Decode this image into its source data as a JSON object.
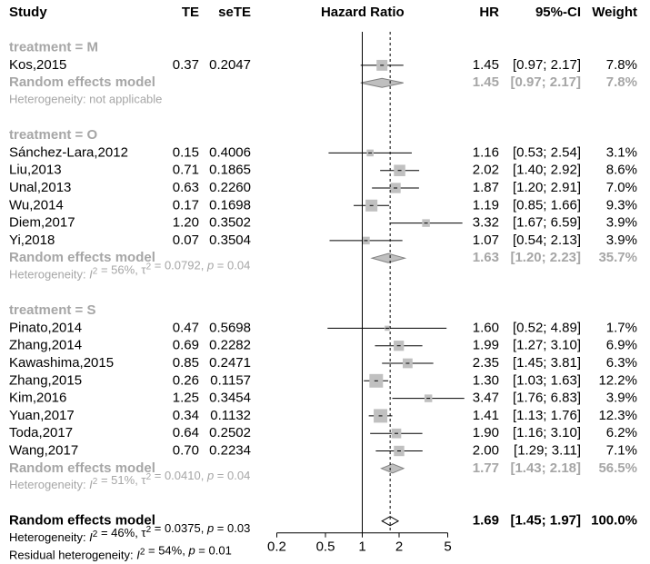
{
  "chart_data": {
    "type": "forest",
    "headers": {
      "study": "Study",
      "te": "TE",
      "sete": "seTE",
      "plot": "Hazard Ratio",
      "hr": "HR",
      "ci": "95%-CI",
      "weight": "Weight"
    },
    "x_axis": {
      "scale": "log",
      "ticks": [
        {
          "value": 0.2,
          "label": "0.2"
        },
        {
          "value": 0.5,
          "label": "0.5"
        },
        {
          "value": 1,
          "label": "1"
        },
        {
          "value": 2,
          "label": "2"
        },
        {
          "value": 5,
          "label": "5"
        }
      ],
      "reference_line": 1,
      "pooled_dashed_line": 1.69
    },
    "groups": [
      {
        "label": "treatment = M",
        "studies": [
          {
            "study": "Kos,2015",
            "te": "0.37",
            "sete": "0.2047",
            "hr": 1.45,
            "lo": 0.97,
            "hi": 2.17,
            "hr_text": "1.45",
            "ci_text": "[0.97; 2.17]",
            "weight_text": "7.8%",
            "weight": 7.8
          }
        ],
        "re": {
          "label": "Random effects model",
          "hr": 1.45,
          "lo": 0.97,
          "hi": 2.17,
          "hr_text": "1.45",
          "ci_text": "[0.97; 2.17]",
          "weight_text": "7.8%"
        },
        "heterogeneity": "Heterogeneity: not applicable"
      },
      {
        "label": "treatment = O",
        "studies": [
          {
            "study": "Sánchez-Lara,2012",
            "te": "0.15",
            "sete": "0.4006",
            "hr": 1.16,
            "lo": 0.53,
            "hi": 2.54,
            "hr_text": "1.16",
            "ci_text": "[0.53; 2.54]",
            "weight_text": "3.1%",
            "weight": 3.1
          },
          {
            "study": "Liu,2013",
            "te": "0.71",
            "sete": "0.1865",
            "hr": 2.02,
            "lo": 1.4,
            "hi": 2.92,
            "hr_text": "2.02",
            "ci_text": "[1.40; 2.92]",
            "weight_text": "8.6%",
            "weight": 8.6
          },
          {
            "study": "Unal,2013",
            "te": "0.63",
            "sete": "0.2260",
            "hr": 1.87,
            "lo": 1.2,
            "hi": 2.91,
            "hr_text": "1.87",
            "ci_text": "[1.20; 2.91]",
            "weight_text": "7.0%",
            "weight": 7.0
          },
          {
            "study": "Wu,2014",
            "te": "0.17",
            "sete": "0.1698",
            "hr": 1.19,
            "lo": 0.85,
            "hi": 1.66,
            "hr_text": "1.19",
            "ci_text": "[0.85; 1.66]",
            "weight_text": "9.3%",
            "weight": 9.3
          },
          {
            "study": "Diem,2017",
            "te": "1.20",
            "sete": "0.3502",
            "hr": 3.32,
            "lo": 1.67,
            "hi": 6.59,
            "hr_text": "3.32",
            "ci_text": "[1.67; 6.59]",
            "weight_text": "3.9%",
            "weight": 3.9
          },
          {
            "study": "Yi,2018",
            "te": "0.07",
            "sete": "0.3504",
            "hr": 1.07,
            "lo": 0.54,
            "hi": 2.13,
            "hr_text": "1.07",
            "ci_text": "[0.54; 2.13]",
            "weight_text": "3.9%",
            "weight": 3.9
          }
        ],
        "re": {
          "label": "Random effects model",
          "hr": 1.63,
          "lo": 1.2,
          "hi": 2.23,
          "hr_text": "1.63",
          "ci_text": "[1.20; 2.23]",
          "weight_text": "35.7%"
        },
        "heterogeneity": "Heterogeneity: I² = 56%, τ² = 0.0792, p = 0.04"
      },
      {
        "label": "treatment = S",
        "studies": [
          {
            "study": "Pinato,2014",
            "te": "0.47",
            "sete": "0.5698",
            "hr": 1.6,
            "lo": 0.52,
            "hi": 4.89,
            "hr_text": "1.60",
            "ci_text": "[0.52; 4.89]",
            "weight_text": "1.7%",
            "weight": 1.7
          },
          {
            "study": "Zhang,2014",
            "te": "0.69",
            "sete": "0.2282",
            "hr": 1.99,
            "lo": 1.27,
            "hi": 3.1,
            "hr_text": "1.99",
            "ci_text": "[1.27; 3.10]",
            "weight_text": "6.9%",
            "weight": 6.9
          },
          {
            "study": "Kawashima,2015",
            "te": "0.85",
            "sete": "0.2471",
            "hr": 2.35,
            "lo": 1.45,
            "hi": 3.81,
            "hr_text": "2.35",
            "ci_text": "[1.45; 3.81]",
            "weight_text": "6.3%",
            "weight": 6.3
          },
          {
            "study": "Zhang,2015",
            "te": "0.26",
            "sete": "0.1157",
            "hr": 1.3,
            "lo": 1.03,
            "hi": 1.63,
            "hr_text": "1.30",
            "ci_text": "[1.03; 1.63]",
            "weight_text": "12.2%",
            "weight": 12.2
          },
          {
            "study": "Kim,2016",
            "te": "1.25",
            "sete": "0.3454",
            "hr": 3.47,
            "lo": 1.76,
            "hi": 6.83,
            "hr_text": "3.47",
            "ci_text": "[1.76; 6.83]",
            "weight_text": "3.9%",
            "weight": 3.9
          },
          {
            "study": "Yuan,2017",
            "te": "0.34",
            "sete": "0.1132",
            "hr": 1.41,
            "lo": 1.13,
            "hi": 1.76,
            "hr_text": "1.41",
            "ci_text": "[1.13; 1.76]",
            "weight_text": "12.3%",
            "weight": 12.3
          },
          {
            "study": "Toda,2017",
            "te": "0.64",
            "sete": "0.2502",
            "hr": 1.9,
            "lo": 1.16,
            "hi": 3.1,
            "hr_text": "1.90",
            "ci_text": "[1.16; 3.10]",
            "weight_text": "6.2%",
            "weight": 6.2
          },
          {
            "study": "Wang,2017",
            "te": "0.70",
            "sete": "0.2234",
            "hr": 2.0,
            "lo": 1.29,
            "hi": 3.11,
            "hr_text": "2.00",
            "ci_text": "[1.29; 3.11]",
            "weight_text": "7.1%",
            "weight": 7.1
          }
        ],
        "re": {
          "label": "Random effects model",
          "hr": 1.77,
          "lo": 1.43,
          "hi": 2.18,
          "hr_text": "1.77",
          "ci_text": "[1.43; 2.18]",
          "weight_text": "56.5%"
        },
        "heterogeneity": "Heterogeneity: I² = 51%, τ² = 0.0410, p = 0.04"
      }
    ],
    "overall": {
      "label": "Random effects model",
      "hr": 1.69,
      "lo": 1.45,
      "hi": 1.97,
      "hr_text": "1.69",
      "ci_text": "[1.45; 1.97]",
      "weight_text": "100.0%",
      "heterogeneity": "Heterogeneity: I² = 46%, τ² = 0.0375, p = 0.03",
      "residual_heterogeneity": "Residual heterogeneity: I² = 54%, p = 0.01"
    },
    "colors": {
      "text": "#000000",
      "subgroup": "#a6a6a6",
      "box": "#c0c0c0",
      "diamond_fill": "#bfbfbf"
    }
  }
}
